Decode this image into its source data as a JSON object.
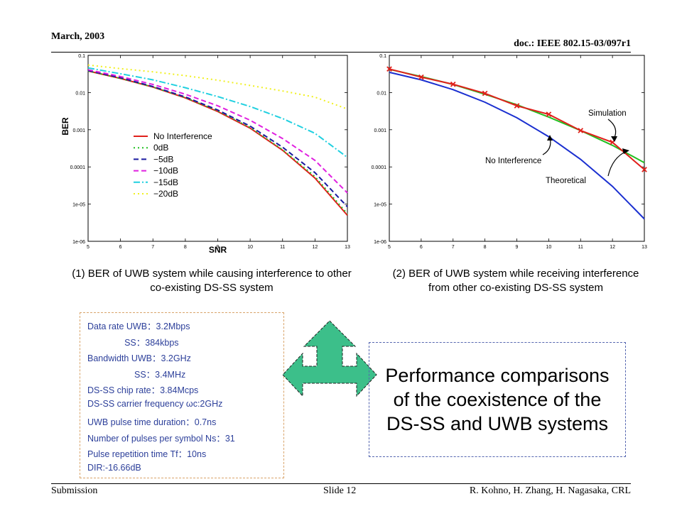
{
  "header": {
    "date": "March, 2003",
    "doc": "doc.: IEEE 802.15-03/097r1"
  },
  "footer": {
    "left": "Submission",
    "center": "Slide 12",
    "right": "R. Kohno, H. Zhang, H. Nagasaka, CRL"
  },
  "captions": {
    "left": "(1) BER of UWB system while causing interference to other co-existing DS-SS system",
    "right": "(2) BER of UWB system while receiving interference from other co-existing DS-SS system"
  },
  "params": [
    "Data rate UWB：3.2Mbps",
    "               SS：384kbps",
    "Bandwidth UWB：3.2GHz",
    "                   SS：3.4MHz",
    "DS-SS chip rate：3.84Mcps",
    "DS-SS carrier frequency ωc:2GHz",
    "UWB pulse time duration：0.7ns",
    "Number of pulses per symbol Ns：31",
    "Pulse repetition time Tf：10ns",
    "DIR:-16.66dB"
  ],
  "performance_text": "Performance comparisons of the coexistence of the DS-SS and UWB systems",
  "arrow_color": "#3cbf8a",
  "chart_data": [
    {
      "type": "line",
      "xlabel": "SNR",
      "ylabel": "BER",
      "xlim": [
        5,
        13
      ],
      "ylim": [
        1e-06,
        0.1
      ],
      "yscale": "log",
      "x_ticks": [
        5,
        6,
        7,
        8,
        9,
        10,
        11,
        12,
        13
      ],
      "x_tick_labels": [
        "5",
        "6",
        "7",
        "8",
        "9",
        "10",
        "11",
        "12",
        "13"
      ],
      "y_ticks": [
        0.1,
        0.01,
        0.001,
        0.0001,
        1e-05,
        1e-06
      ],
      "y_tick_labels": [
        "0.1",
        "0.01",
        "0.001",
        "0.0001",
        "1e-05",
        "1e-06"
      ],
      "grid": false,
      "legend_position": "center",
      "x": [
        5,
        6,
        7,
        8,
        9,
        10,
        11,
        12,
        13
      ],
      "series": [
        {
          "name": "No Interference",
          "color": "#e0201b",
          "dash": "solid",
          "values": [
            0.038,
            0.024,
            0.014,
            0.0072,
            0.0031,
            0.0011,
            0.00028,
            5e-05,
            5e-06
          ]
        },
        {
          "name": "0dB",
          "color": "#20c020",
          "dash": "dot",
          "values": [
            0.038,
            0.024,
            0.014,
            0.0073,
            0.0032,
            0.00115,
            0.00029,
            5.5e-05,
            5.5e-06
          ]
        },
        {
          "name": "−5dB",
          "color": "#1a1aa0",
          "dash": "dash",
          "values": [
            0.039,
            0.025,
            0.0145,
            0.0076,
            0.0034,
            0.00125,
            0.00034,
            7e-05,
            8.5e-06
          ]
        },
        {
          "name": "−10dB",
          "color": "#e020e0",
          "dash": "dash",
          "values": [
            0.041,
            0.027,
            0.0165,
            0.009,
            0.0044,
            0.0018,
            0.00058,
            0.00015,
            2e-05
          ]
        },
        {
          "name": "−15dB",
          "color": "#20d0e0",
          "dash": "dashdot",
          "values": [
            0.046,
            0.032,
            0.022,
            0.0135,
            0.0078,
            0.0042,
            0.002,
            0.0008,
            0.00018
          ]
        },
        {
          "name": "−20dB",
          "color": "#f0f020",
          "dash": "dot",
          "values": [
            0.055,
            0.044,
            0.036,
            0.0285,
            0.0215,
            0.0155,
            0.011,
            0.0075,
            0.0036
          ]
        }
      ]
    },
    {
      "type": "line",
      "xlim": [
        5,
        13
      ],
      "ylim": [
        1e-06,
        0.1
      ],
      "yscale": "log",
      "x_ticks": [
        5,
        6,
        7,
        8,
        9,
        10,
        11,
        12,
        13
      ],
      "x_tick_labels": [
        "5",
        "6",
        "7",
        "8",
        "9",
        "10",
        "11",
        "12",
        "13"
      ],
      "y_ticks": [
        0.1,
        0.01,
        0.001,
        0.0001,
        1e-05,
        1e-06
      ],
      "y_tick_labels": [
        "0.1",
        "0.01",
        "0.001",
        "0.0001",
        "1e-05",
        "1e-06"
      ],
      "grid": false,
      "x": [
        5,
        6,
        7,
        8,
        9,
        10,
        11,
        12,
        13
      ],
      "series": [
        {
          "name": "No Interference",
          "color": "#1a2fd0",
          "dash": "solid",
          "marker": "none",
          "values": [
            0.035,
            0.022,
            0.012,
            0.0055,
            0.0021,
            0.00065,
            0.00016,
            3e-05,
            4e-06
          ]
        },
        {
          "name": "Theoretical",
          "color": "#20c020",
          "dash": "solid",
          "marker": "none",
          "values": [
            0.042,
            0.027,
            0.0165,
            0.009,
            0.0047,
            0.0022,
            0.00095,
            0.00038,
            0.00013
          ]
        },
        {
          "name": "Simulation",
          "color": "#e0201b",
          "dash": "solid",
          "marker": "x",
          "values": [
            0.043,
            0.026,
            0.0167,
            0.0095,
            0.0044,
            0.0026,
            0.00095,
            0.00046,
            8.5e-05
          ]
        }
      ],
      "annotations": [
        "Simulation",
        "No Interference",
        "Theoretical"
      ]
    }
  ]
}
